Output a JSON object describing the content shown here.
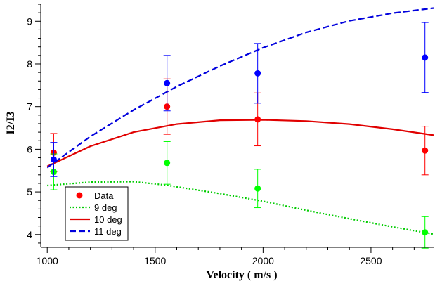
{
  "chart_data": {
    "type": "scatter",
    "title": "",
    "xlabel": "Velocity ( m/s )",
    "ylabel": "I2/I3",
    "xlim": [
      970,
      2790
    ],
    "ylim": [
      3.7,
      9.4
    ],
    "xticks": [
      1000,
      1500,
      2000,
      2500
    ],
    "yticks": [
      4,
      5,
      6,
      7,
      8,
      9
    ],
    "grid": false,
    "legend_position": "bottom-left",
    "legend": [
      "Data",
      "9 deg",
      "10 deg",
      "11 deg"
    ],
    "scatter_series": [
      {
        "name": "Data",
        "color": "#ff0000",
        "points": [
          {
            "x": 1030,
            "y": 5.92,
            "err_low": 0.45,
            "err_high": 0.45
          },
          {
            "x": 1555,
            "y": 7.0,
            "err_low": 0.65,
            "err_high": 0.65
          },
          {
            "x": 1975,
            "y": 6.7,
            "err_low": 0.62,
            "err_high": 0.62
          },
          {
            "x": 2750,
            "y": 5.97,
            "err_low": 0.57,
            "err_high": 0.57
          }
        ]
      },
      {
        "name": "",
        "color": "#00ff00",
        "points": [
          {
            "x": 1030,
            "y": 5.47,
            "err_low": 0.42,
            "err_high": 0.42
          },
          {
            "x": 1555,
            "y": 5.68,
            "err_low": 0.5,
            "err_high": 0.5
          },
          {
            "x": 1975,
            "y": 5.08,
            "err_low": 0.45,
            "err_high": 0.45
          },
          {
            "x": 2750,
            "y": 4.05,
            "err_low": 0.37,
            "err_high": 0.37
          }
        ]
      },
      {
        "name": "",
        "color": "#0000ff",
        "points": [
          {
            "x": 1030,
            "y": 5.76,
            "err_low": 0.4,
            "err_high": 0.4
          },
          {
            "x": 1555,
            "y": 7.55,
            "err_low": 0.65,
            "err_high": 0.65
          },
          {
            "x": 1975,
            "y": 7.78,
            "err_low": 0.7,
            "err_high": 0.7
          },
          {
            "x": 2750,
            "y": 8.15,
            "err_low": 0.82,
            "err_high": 0.82
          }
        ]
      }
    ],
    "line_series": [
      {
        "name": "9 deg",
        "color": "#00cc00",
        "style": "dotted",
        "x": [
          1000,
          1200,
          1400,
          1550,
          1800,
          2000,
          2200,
          2400,
          2600,
          2790
        ],
        "y": [
          5.15,
          5.23,
          5.24,
          5.16,
          4.96,
          4.78,
          4.57,
          4.37,
          4.18,
          4.01
        ]
      },
      {
        "name": "10 deg",
        "color": "#e00000",
        "style": "solid",
        "x": [
          1000,
          1200,
          1400,
          1600,
          1800,
          2000,
          2200,
          2400,
          2600,
          2790
        ],
        "y": [
          5.6,
          6.07,
          6.4,
          6.59,
          6.68,
          6.69,
          6.66,
          6.59,
          6.47,
          6.33
        ]
      },
      {
        "name": "11 deg",
        "color": "#0000dd",
        "style": "dashed",
        "x": [
          1000,
          1200,
          1400,
          1600,
          1800,
          2000,
          2200,
          2400,
          2600,
          2790
        ],
        "y": [
          5.57,
          6.3,
          6.92,
          7.47,
          7.95,
          8.38,
          8.74,
          9.01,
          9.19,
          9.31
        ]
      }
    ]
  }
}
